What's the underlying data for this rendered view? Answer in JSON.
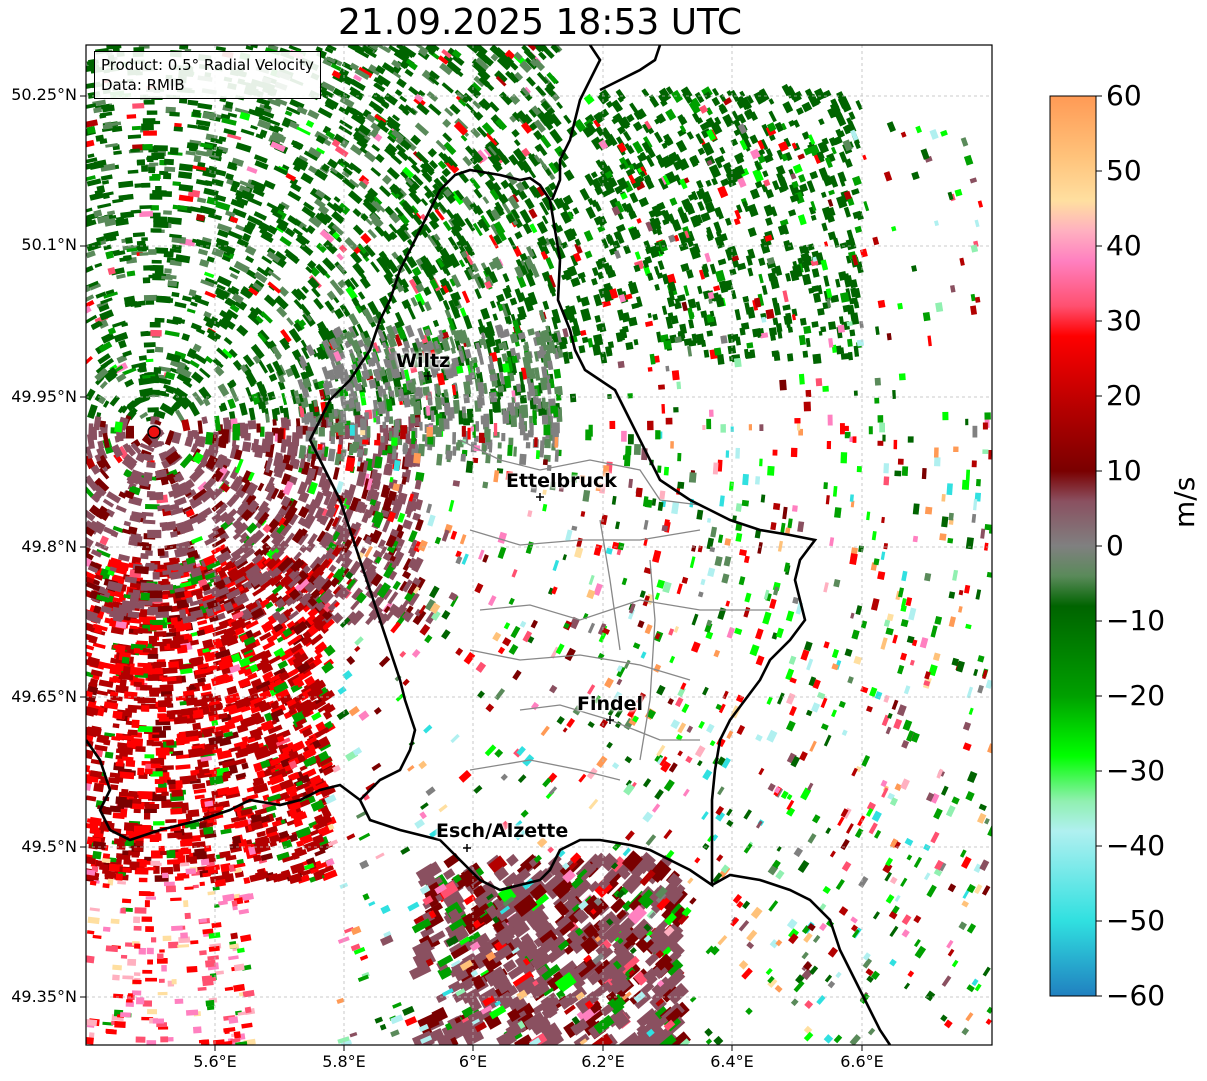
{
  "title": "21.09.2025 18:53 UTC",
  "info": {
    "product": "Product: 0.5° Radial Velocity",
    "source": "Data: RMIB"
  },
  "axes": {
    "lat_labels": [
      "50.25°N",
      "50.1°N",
      "49.95°N",
      "49.8°N",
      "49.65°N",
      "49.5°N",
      "49.35°N"
    ],
    "lon_labels": [
      "5.6°E",
      "5.8°E",
      "6°E",
      "6.2°E",
      "6.4°E",
      "6.6°E"
    ]
  },
  "colorbar": {
    "unit": "m/s",
    "ticks": [
      "60",
      "50",
      "40",
      "30",
      "20",
      "10",
      "0",
      "−10",
      "−20",
      "−30",
      "−40",
      "−50",
      "−60"
    ],
    "stops": [
      {
        "v": 60,
        "c": "#ff9a55"
      },
      {
        "v": 52,
        "c": "#ffc27a"
      },
      {
        "v": 46,
        "c": "#ffdfa0"
      },
      {
        "v": 42,
        "c": "#ffb0c0"
      },
      {
        "v": 38,
        "c": "#ff80c0"
      },
      {
        "v": 32,
        "c": "#ff5070"
      },
      {
        "v": 28,
        "c": "#ff0000"
      },
      {
        "v": 18,
        "c": "#b30000"
      },
      {
        "v": 10,
        "c": "#7a0000"
      },
      {
        "v": 6,
        "c": "#8a5060"
      },
      {
        "v": 0,
        "c": "#808080"
      },
      {
        "v": -4,
        "c": "#5a8a5a"
      },
      {
        "v": -8,
        "c": "#006400"
      },
      {
        "v": -20,
        "c": "#00a000"
      },
      {
        "v": -28,
        "c": "#00ff00"
      },
      {
        "v": -34,
        "c": "#90f0b0"
      },
      {
        "v": -38,
        "c": "#b0f0f0"
      },
      {
        "v": -50,
        "c": "#30e0e0"
      },
      {
        "v": -60,
        "c": "#2080c0"
      }
    ]
  },
  "cities": [
    {
      "name": "Wiltz"
    },
    {
      "name": "Ettelbruck"
    },
    {
      "name": "Findel"
    },
    {
      "name": "Esch/Alzette"
    }
  ]
}
